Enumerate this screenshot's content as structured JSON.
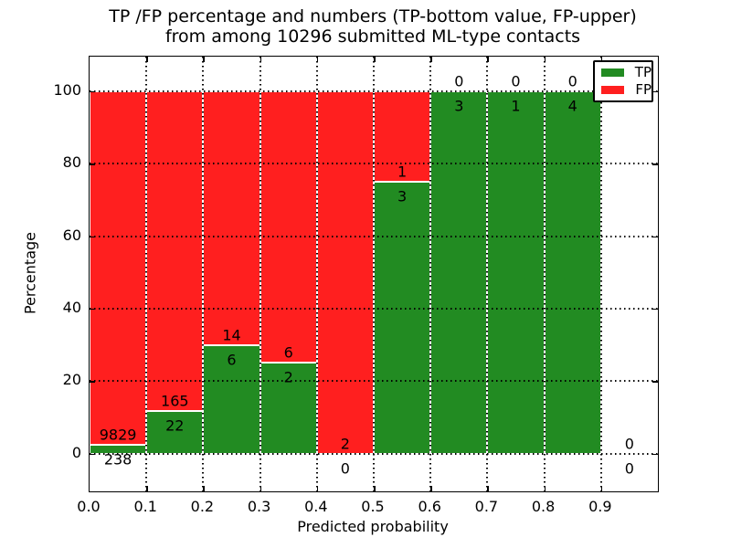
{
  "chart_data": {
    "type": "bar",
    "stacked": true,
    "normalization": "each bin scaled to percent of bin total (TP+FP)",
    "title_lines": [
      "TP /FP percentage and numbers (TP-bottom value, FP-upper)",
      "from among 10296 submitted ML-type contacts"
    ],
    "total_contacts": 10296,
    "xlabel": "Predicted probability",
    "ylabel": "Percentage",
    "xlim": [
      0.0,
      1.0
    ],
    "ylim": [
      -10.4,
      109.5
    ],
    "xticks": [
      "0.0",
      "0.1",
      "0.2",
      "0.3",
      "0.4",
      "0.5",
      "0.6",
      "0.7",
      "0.8",
      "0.9"
    ],
    "yticks": [
      0,
      20,
      40,
      60,
      80,
      100
    ],
    "grid": {
      "visible": true,
      "style": "dotted",
      "color": "#000000"
    },
    "bin_width": 0.1,
    "bin_starts": [
      0.0,
      0.1,
      0.2,
      0.3,
      0.4,
      0.5,
      0.6,
      0.7,
      0.8,
      0.9
    ],
    "series": [
      {
        "name": "TP",
        "color": "#228b22",
        "values": [
          238,
          22,
          6,
          2,
          0,
          3,
          3,
          1,
          4,
          0
        ]
      },
      {
        "name": "FP",
        "color": "#ff1f1f",
        "values": [
          9829,
          165,
          14,
          6,
          2,
          1,
          0,
          0,
          0,
          0
        ]
      }
    ],
    "tp_percent_per_bin": [
      2.4,
      11.8,
      30.0,
      25.0,
      0.0,
      75.0,
      100.0,
      100.0,
      100.0,
      null
    ],
    "legend": {
      "position": "upper right",
      "entries": [
        {
          "label": "TP",
          "color": "#228b22"
        },
        {
          "label": "FP",
          "color": "#ff1f1f"
        }
      ]
    }
  }
}
